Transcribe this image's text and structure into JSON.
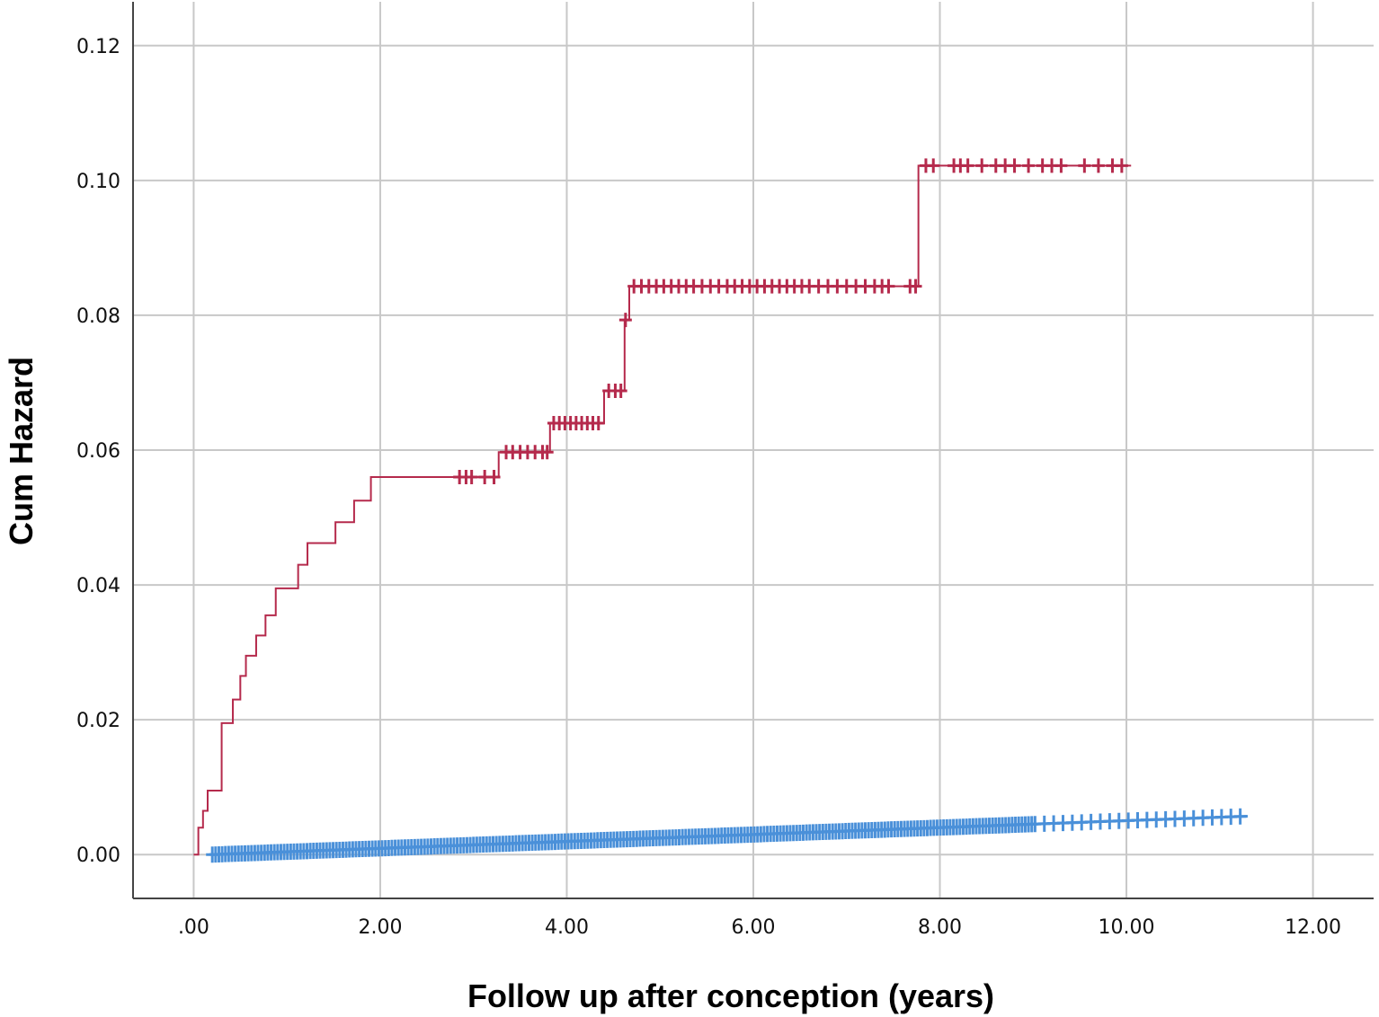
{
  "chart_data": {
    "type": "line",
    "title": "",
    "xlabel": "Follow up after conception (years)",
    "ylabel": "Cum Hazard",
    "xlim": [
      -0.65,
      12.65
    ],
    "ylim": [
      -0.0065,
      0.1265
    ],
    "grid": true,
    "legend": "none",
    "x_ticks": [
      {
        "value": 0,
        "label": ".00"
      },
      {
        "value": 2,
        "label": "2.00"
      },
      {
        "value": 4,
        "label": "4.00"
      },
      {
        "value": 6,
        "label": "6.00"
      },
      {
        "value": 8,
        "label": "8.00"
      },
      {
        "value": 10,
        "label": "10.00"
      },
      {
        "value": 12,
        "label": "12.00"
      }
    ],
    "y_ticks": [
      {
        "value": 0.0,
        "label": "0.00"
      },
      {
        "value": 0.02,
        "label": "0.02"
      },
      {
        "value": 0.04,
        "label": "0.04"
      },
      {
        "value": 0.06,
        "label": "0.06"
      },
      {
        "value": 0.08,
        "label": "0.08"
      },
      {
        "value": 0.1,
        "label": "0.10"
      },
      {
        "value": 0.12,
        "label": "0.12"
      }
    ],
    "series": [
      {
        "color": "#b52a4c",
        "step_points": [
          [
            0.0,
            0.0
          ],
          [
            0.05,
            0.004
          ],
          [
            0.1,
            0.0065
          ],
          [
            0.15,
            0.0095
          ],
          [
            0.27,
            0.0095
          ],
          [
            0.3,
            0.0195
          ],
          [
            0.4,
            0.0195
          ],
          [
            0.42,
            0.023
          ],
          [
            0.48,
            0.023
          ],
          [
            0.5,
            0.0265
          ],
          [
            0.55,
            0.0265
          ],
          [
            0.56,
            0.0295
          ],
          [
            0.65,
            0.0295
          ],
          [
            0.67,
            0.0325
          ],
          [
            0.75,
            0.0325
          ],
          [
            0.77,
            0.0355
          ],
          [
            0.86,
            0.0355
          ],
          [
            0.88,
            0.0395
          ],
          [
            1.1,
            0.0395
          ],
          [
            1.12,
            0.043
          ],
          [
            1.2,
            0.043
          ],
          [
            1.22,
            0.0462
          ],
          [
            1.5,
            0.0462
          ],
          [
            1.52,
            0.0493
          ],
          [
            1.7,
            0.0493
          ],
          [
            1.72,
            0.0525
          ],
          [
            1.88,
            0.0525
          ],
          [
            1.9,
            0.056
          ],
          [
            3.25,
            0.056
          ],
          [
            3.27,
            0.0597
          ],
          [
            3.8,
            0.0597
          ],
          [
            3.82,
            0.064
          ],
          [
            4.38,
            0.064
          ],
          [
            4.4,
            0.0688
          ],
          [
            4.6,
            0.0688
          ],
          [
            4.62,
            0.0793
          ],
          [
            4.65,
            0.0793
          ],
          [
            4.67,
            0.0843
          ],
          [
            7.75,
            0.0843
          ],
          [
            7.77,
            0.1022
          ],
          [
            10.05,
            0.1022
          ]
        ],
        "censored_x": [
          2.85,
          2.92,
          2.98,
          3.12,
          3.22,
          3.35,
          3.42,
          3.5,
          3.58,
          3.66,
          3.74,
          3.79,
          3.86,
          3.92,
          3.98,
          4.04,
          4.1,
          4.16,
          4.22,
          4.28,
          4.34,
          4.45,
          4.52,
          4.58,
          4.63,
          4.72,
          4.8,
          4.88,
          4.96,
          5.04,
          5.12,
          5.2,
          5.28,
          5.36,
          5.45,
          5.54,
          5.63,
          5.72,
          5.8,
          5.88,
          5.96,
          6.04,
          6.12,
          6.2,
          6.28,
          6.36,
          6.44,
          6.52,
          6.6,
          6.7,
          6.8,
          6.9,
          7.0,
          7.1,
          7.2,
          7.3,
          7.38,
          7.45,
          7.68,
          7.74,
          7.85,
          7.93,
          8.15,
          8.22,
          8.3,
          8.45,
          8.6,
          8.7,
          8.8,
          8.95,
          9.1,
          9.2,
          9.3,
          9.55,
          9.7,
          9.85,
          9.95
        ]
      },
      {
        "color": "#4a90d9",
        "start": [
          0.2,
          0.0
        ],
        "end": [
          11.3,
          0.0057
        ],
        "censored_x_range": [
          0.2,
          11.3
        ],
        "censored_spacing_dense": 0.035,
        "censored_spacing_sparse": 0.1,
        "sparse_after_x": 9.0
      }
    ]
  }
}
